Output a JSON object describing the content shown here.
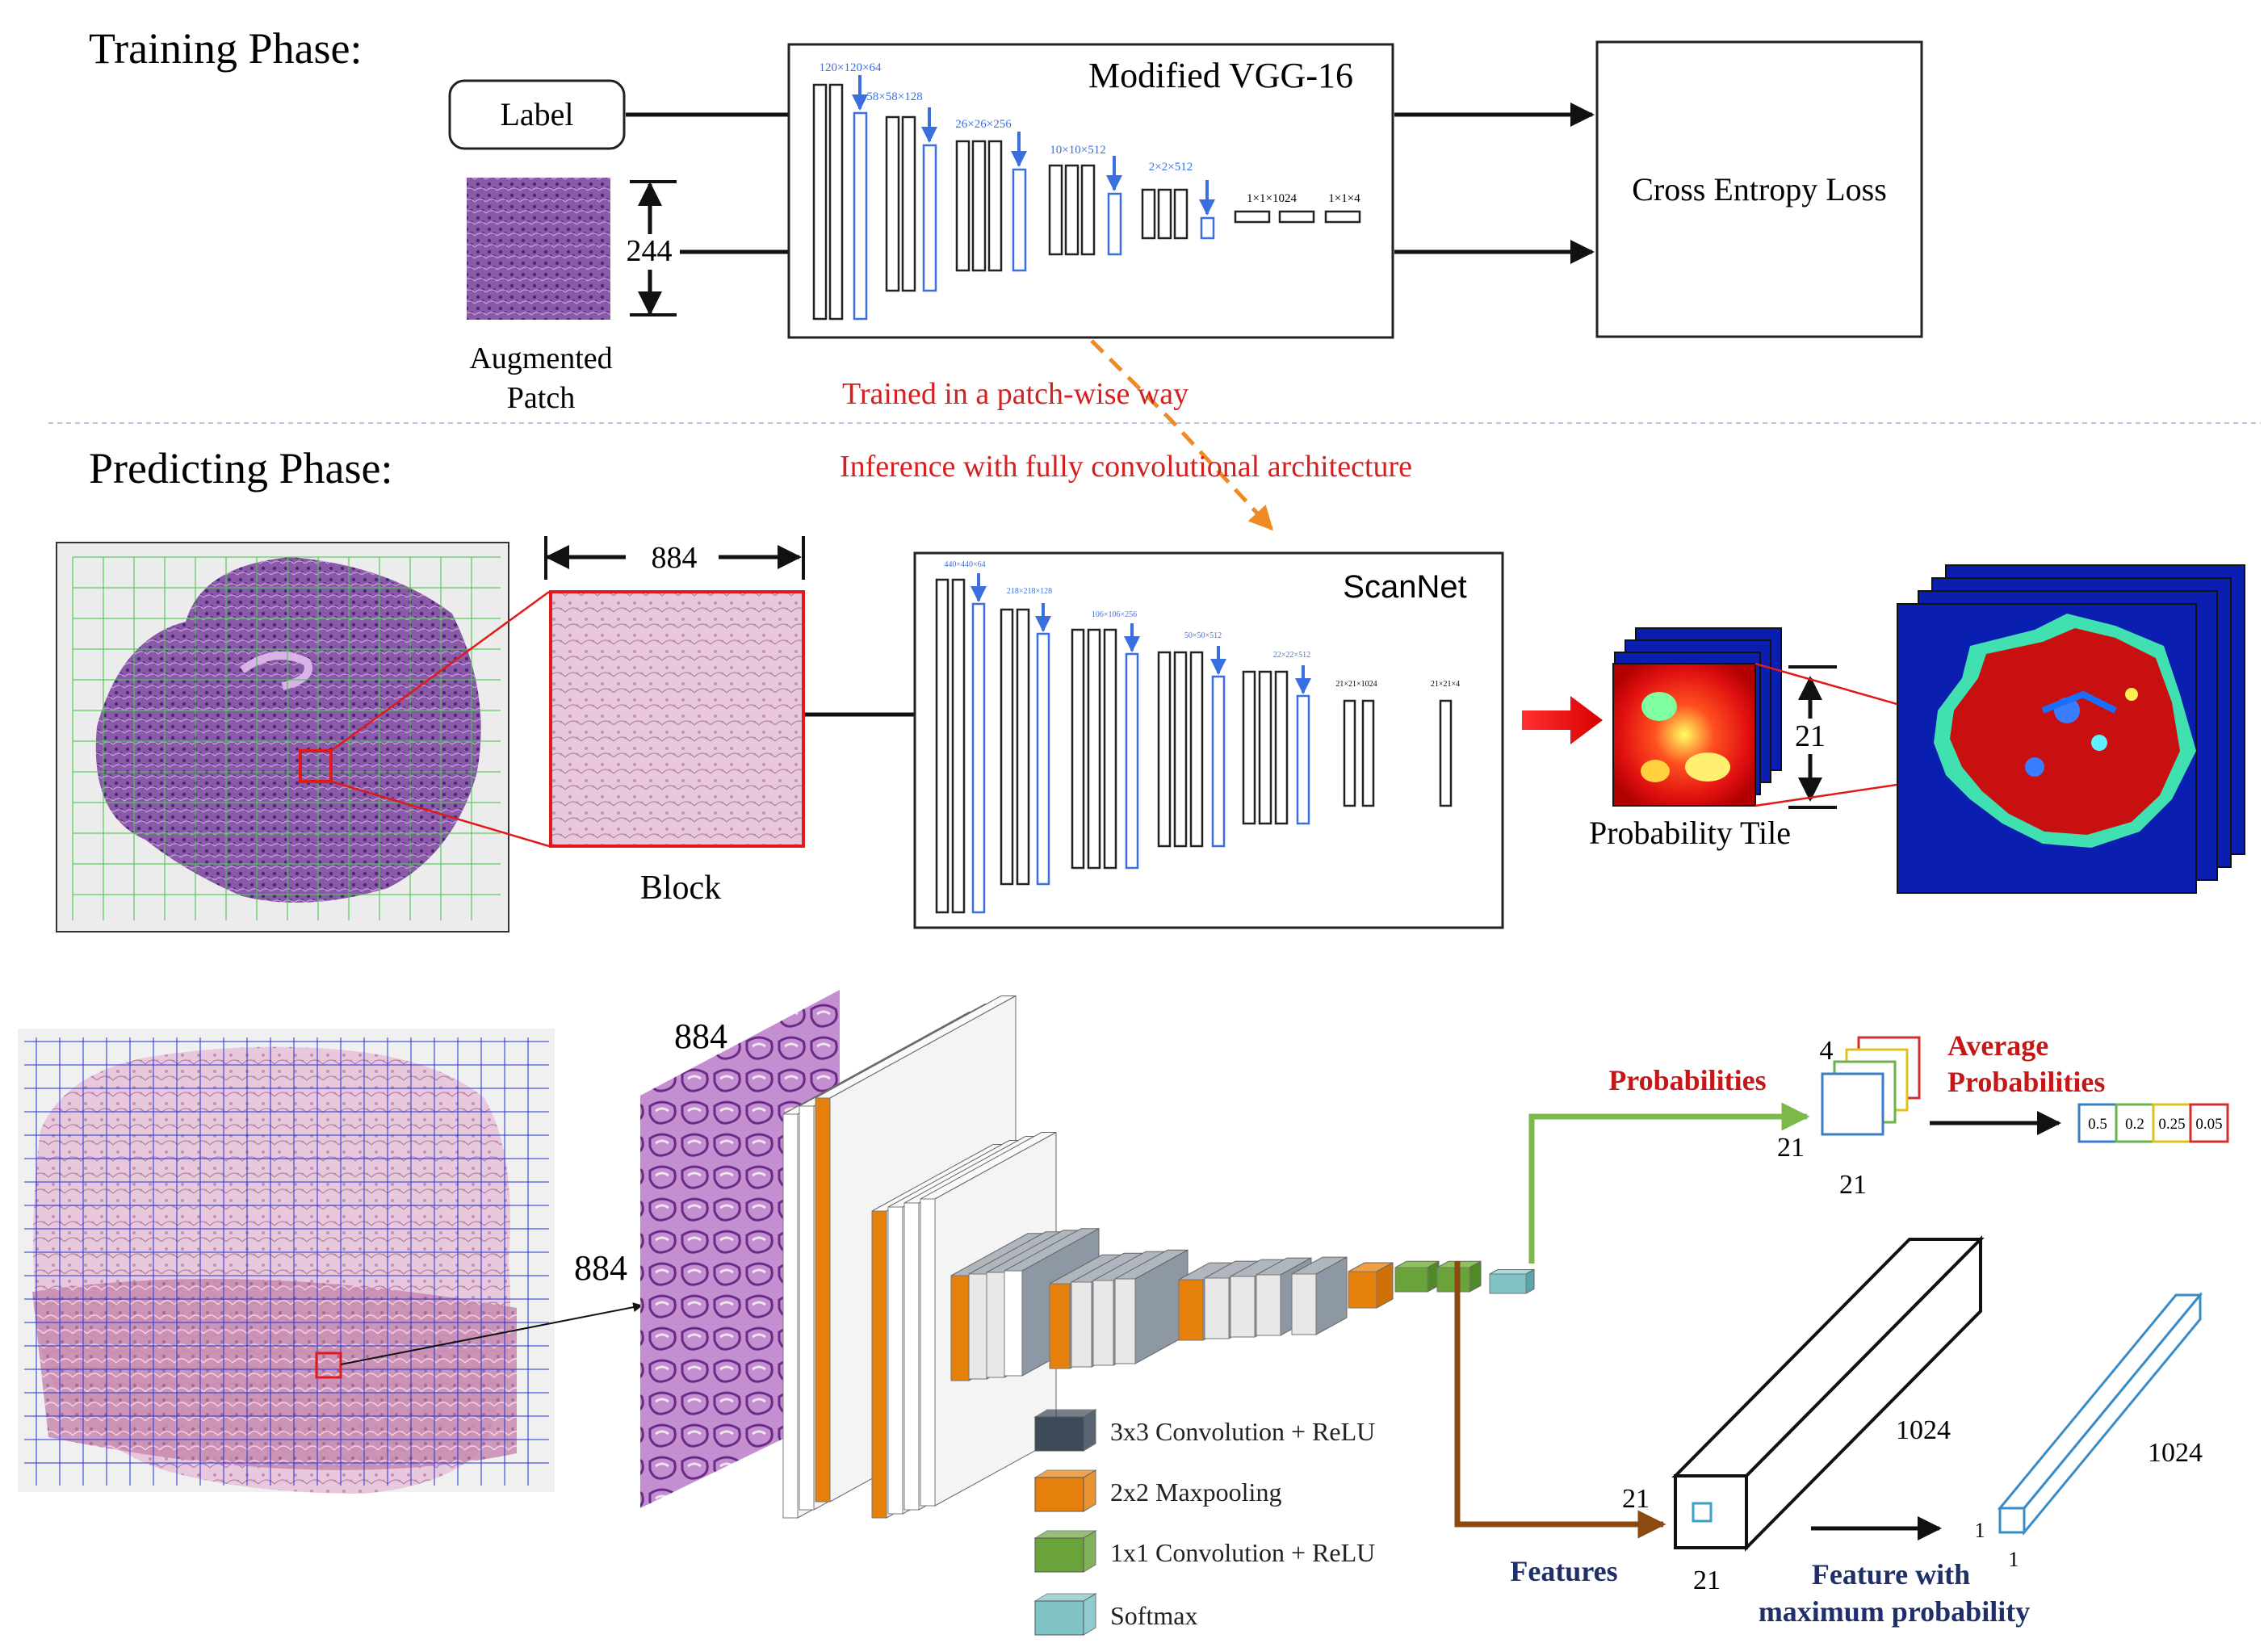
{
  "training": {
    "heading": "Training Phase:",
    "label_box": "Label",
    "patch_size": "244",
    "patch_caption_line1": "Augmented",
    "patch_caption_line2": "Patch",
    "model_title": "Modified VGG-16",
    "loss_box": "Cross Entropy Loss",
    "dims": [
      "120×120×64",
      "58×58×128",
      "26×26×256",
      "10×10×512",
      "2×2×512",
      "1×1×1024",
      "1×1×4"
    ]
  },
  "transfer": {
    "note1": "Trained in a patch-wise way",
    "note2": "Inference with fully convolutional architecture"
  },
  "predicting": {
    "heading": "Predicting Phase:",
    "block_size": "884",
    "block_caption": "Block",
    "model_title": "ScanNet",
    "dims": [
      "440×440×64",
      "218×218×128",
      "106×106×256",
      "50×50×512",
      "22×22×512",
      "21×21×1024",
      "21×21×4"
    ],
    "tile_size": "21",
    "tile_caption": "Probability Tile"
  },
  "bottom": {
    "block_h": "884",
    "block_w": "884",
    "probabilities_label": "Probabilities",
    "prob_stack_depth": "4",
    "prob_stack_h": "21",
    "prob_stack_w": "21",
    "average_line1": "Average",
    "average_line2": "Probabilities",
    "avg_values": [
      "0.5",
      "0.2",
      "0.25",
      "0.05"
    ],
    "avg_colors": [
      "#3a7dc2",
      "#6bb34a",
      "#e0c020",
      "#d03030"
    ],
    "features_label": "Features",
    "feature_h": "21",
    "feature_w": "21",
    "feature_depth": "1024",
    "max_feature_depth": "1024",
    "max_feature_h": "1",
    "max_feature_w": "1",
    "max_label_line1": "Feature with",
    "max_label_line2": "maximum probability",
    "legend": [
      {
        "label": "3x3 Convolution + ReLU",
        "color": "#3c4a5a"
      },
      {
        "label": "2x2 Maxpooling",
        "color": "#e6800c"
      },
      {
        "label": "1x1 Convolution + ReLU",
        "color": "#6aa33a"
      },
      {
        "label": "Softmax",
        "color": "#7fc3c6"
      }
    ]
  }
}
